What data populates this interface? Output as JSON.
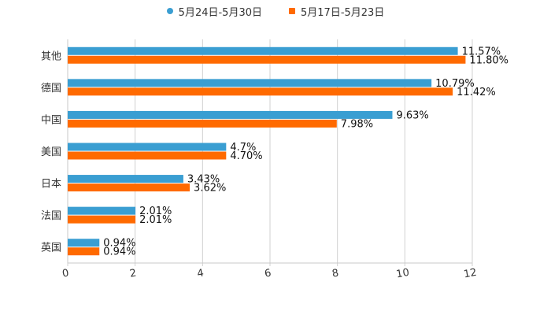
{
  "chart_data": {
    "type": "bar",
    "orientation": "horizontal",
    "categories": [
      "其他",
      "德国",
      "中国",
      "美国",
      "日本",
      "法国",
      "英国"
    ],
    "series": [
      {
        "name": "5月24日-5月30日",
        "color": "#3a9ed2",
        "values": [
          11.57,
          10.79,
          9.63,
          4.7,
          3.43,
          2.01,
          0.94
        ],
        "labels": [
          "11.57%",
          "10.79%",
          "9.63%",
          "4.7%",
          "3.43%",
          "2.01%",
          "0.94%"
        ]
      },
      {
        "name": "5月17日-5月23日",
        "color": "#ff6a00",
        "values": [
          11.8,
          11.42,
          7.98,
          4.7,
          3.62,
          2.01,
          0.94
        ],
        "labels": [
          "11.80%",
          "11.42%",
          "7.98%",
          "4.70%",
          "3.62%",
          "2.01%",
          "0.94%"
        ]
      }
    ],
    "xlim": [
      0,
      12
    ],
    "xticks": [
      "0",
      "2",
      "4",
      "6",
      "8",
      "10",
      "12"
    ],
    "grid": true,
    "legend_position": "top-center",
    "title": "",
    "xlabel": "",
    "ylabel": ""
  }
}
